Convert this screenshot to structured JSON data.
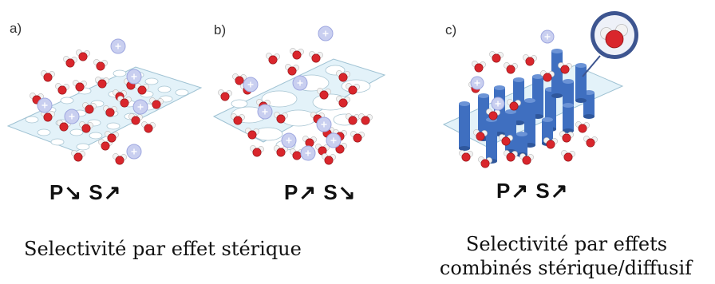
{
  "panels": [
    {
      "letter": "a)",
      "ps": "P↘ S↗"
    },
    {
      "letter": "b)",
      "ps": "P↗ S↘"
    },
    {
      "letter": "c)",
      "ps": "P↗ S↗"
    }
  ],
  "captions": {
    "steric": "Selectivité par effet stérique",
    "combined_line1": "Selectivité par effets",
    "combined_line2": "combinés stérique/diffusif"
  },
  "colors": {
    "membrane": "#dff0f8",
    "membrane_edge": "#8fb8cc",
    "oxygen": "#d9262c",
    "hydrogen": "#f2f2f2",
    "ion": "#c9cff0",
    "cylinder": "#3f6fc0"
  },
  "icons": [
    "water-molecule-icon",
    "ion-icon",
    "cylinder-channel-icon",
    "magnifier-inset-icon"
  ]
}
